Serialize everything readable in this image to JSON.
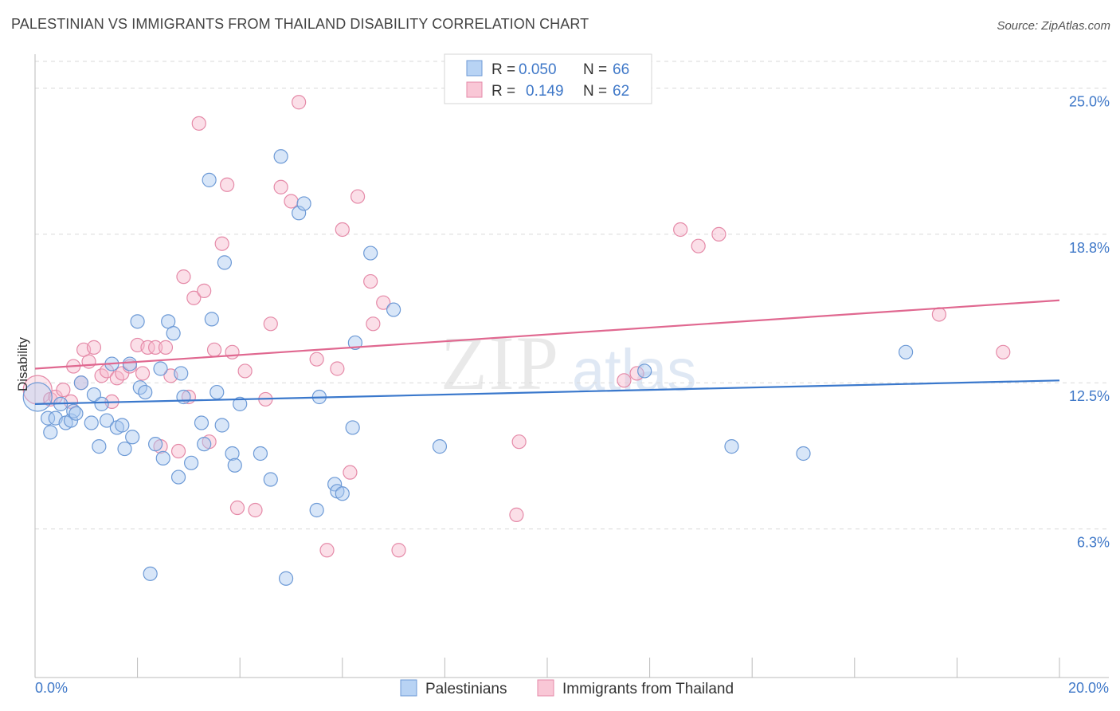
{
  "header": {
    "title": "PALESTINIAN VS IMMIGRANTS FROM THAILAND DISABILITY CORRELATION CHART",
    "source": "Source: ZipAtlas.com"
  },
  "watermark": {
    "part1": "ZIP",
    "part2": "atlas"
  },
  "legend": {
    "rows": [
      {
        "r_label": "R =",
        "r_value": "0.050",
        "n_label": "N =",
        "n_value": "66"
      },
      {
        "r_label": "R =",
        "r_value": "0.149",
        "n_label": "N =",
        "n_value": "62"
      }
    ]
  },
  "bottom_legend": {
    "series1": "Palestinians",
    "series2": "Immigrants from Thailand"
  },
  "colors": {
    "blue_fill": "#a9c8f0",
    "blue_stroke": "#6d9ad6",
    "blue_line": "#3a78cc",
    "pink_fill": "#f6b8cc",
    "pink_stroke": "#e58aa8",
    "pink_line": "#e06890",
    "axis_text": "#3f78c8",
    "grid": "#d9d9d9"
  },
  "chart_data": {
    "type": "scatter",
    "title": "PALESTINIAN VS IMMIGRANTS FROM THAILAND DISABILITY CORRELATION CHART",
    "xlabel": "",
    "ylabel": "Disability",
    "xlim": [
      0,
      20
    ],
    "ylim": [
      0,
      26.2
    ],
    "x_tick_labels": [
      "0.0%",
      "20.0%"
    ],
    "y_ticks": [
      6.3,
      12.5,
      18.8,
      25.0
    ],
    "y_tick_labels": [
      "6.3%",
      "12.5%",
      "18.8%",
      "25.0%"
    ],
    "series": [
      {
        "name": "Palestinians",
        "R": 0.05,
        "N": 66,
        "trend": {
          "x": [
            0,
            20
          ],
          "y": [
            11.6,
            12.6
          ]
        },
        "points": [
          {
            "x": 0.05,
            "y": 11.9,
            "big": true
          },
          {
            "x": 0.25,
            "y": 11.0
          },
          {
            "x": 0.3,
            "y": 10.4
          },
          {
            "x": 0.4,
            "y": 11.0
          },
          {
            "x": 0.5,
            "y": 11.6
          },
          {
            "x": 0.6,
            "y": 10.8
          },
          {
            "x": 0.7,
            "y": 10.9
          },
          {
            "x": 0.75,
            "y": 11.3
          },
          {
            "x": 0.8,
            "y": 11.2
          },
          {
            "x": 0.9,
            "y": 12.5
          },
          {
            "x": 1.1,
            "y": 10.8
          },
          {
            "x": 1.15,
            "y": 12.0
          },
          {
            "x": 1.25,
            "y": 9.8
          },
          {
            "x": 1.3,
            "y": 11.6
          },
          {
            "x": 1.4,
            "y": 10.9
          },
          {
            "x": 1.5,
            "y": 13.3
          },
          {
            "x": 1.6,
            "y": 10.6
          },
          {
            "x": 1.7,
            "y": 10.7
          },
          {
            "x": 1.75,
            "y": 9.7
          },
          {
            "x": 1.85,
            "y": 13.3
          },
          {
            "x": 1.9,
            "y": 10.2
          },
          {
            "x": 2.0,
            "y": 15.1
          },
          {
            "x": 2.05,
            "y": 12.3
          },
          {
            "x": 2.15,
            "y": 12.1
          },
          {
            "x": 2.25,
            "y": 4.4
          },
          {
            "x": 2.35,
            "y": 9.9
          },
          {
            "x": 2.45,
            "y": 13.1
          },
          {
            "x": 2.5,
            "y": 9.3
          },
          {
            "x": 2.6,
            "y": 15.1
          },
          {
            "x": 2.7,
            "y": 14.6
          },
          {
            "x": 2.8,
            "y": 8.5
          },
          {
            "x": 2.85,
            "y": 12.9
          },
          {
            "x": 2.9,
            "y": 11.9
          },
          {
            "x": 3.05,
            "y": 9.1
          },
          {
            "x": 3.25,
            "y": 10.8
          },
          {
            "x": 3.3,
            "y": 9.9
          },
          {
            "x": 3.4,
            "y": 21.1
          },
          {
            "x": 3.45,
            "y": 15.2
          },
          {
            "x": 3.55,
            "y": 12.1
          },
          {
            "x": 3.65,
            "y": 10.7
          },
          {
            "x": 3.7,
            "y": 17.6
          },
          {
            "x": 3.85,
            "y": 9.5
          },
          {
            "x": 3.9,
            "y": 9.0
          },
          {
            "x": 4.0,
            "y": 11.6
          },
          {
            "x": 4.4,
            "y": 9.5
          },
          {
            "x": 4.6,
            "y": 8.4
          },
          {
            "x": 4.8,
            "y": 22.1
          },
          {
            "x": 4.9,
            "y": 4.2
          },
          {
            "x": 5.15,
            "y": 19.7
          },
          {
            "x": 5.25,
            "y": 20.1
          },
          {
            "x": 5.5,
            "y": 7.1
          },
          {
            "x": 5.55,
            "y": 11.9
          },
          {
            "x": 5.85,
            "y": 8.2
          },
          {
            "x": 5.9,
            "y": 7.9
          },
          {
            "x": 6.0,
            "y": 7.8
          },
          {
            "x": 6.2,
            "y": 10.6
          },
          {
            "x": 6.25,
            "y": 14.2
          },
          {
            "x": 6.55,
            "y": 18.0
          },
          {
            "x": 7.0,
            "y": 15.6
          },
          {
            "x": 7.9,
            "y": 9.8
          },
          {
            "x": 11.9,
            "y": 13.0
          },
          {
            "x": 13.6,
            "y": 9.8
          },
          {
            "x": 15.0,
            "y": 9.5
          },
          {
            "x": 17.0,
            "y": 13.8
          }
        ]
      },
      {
        "name": "Immigrants from Thailand",
        "R": 0.149,
        "N": 62,
        "trend": {
          "x": [
            0,
            20
          ],
          "y": [
            13.1,
            16.0
          ]
        },
        "points": [
          {
            "x": 0.05,
            "y": 12.2,
            "big": true
          },
          {
            "x": 0.3,
            "y": 11.8
          },
          {
            "x": 0.4,
            "y": 11.9
          },
          {
            "x": 0.55,
            "y": 12.2
          },
          {
            "x": 0.7,
            "y": 11.7
          },
          {
            "x": 0.75,
            "y": 13.2
          },
          {
            "x": 0.9,
            "y": 12.5
          },
          {
            "x": 0.95,
            "y": 13.9
          },
          {
            "x": 1.05,
            "y": 13.4
          },
          {
            "x": 1.15,
            "y": 14.0
          },
          {
            "x": 1.3,
            "y": 12.8
          },
          {
            "x": 1.4,
            "y": 13.0
          },
          {
            "x": 1.5,
            "y": 11.7
          },
          {
            "x": 1.6,
            "y": 12.7
          },
          {
            "x": 1.7,
            "y": 12.9
          },
          {
            "x": 1.85,
            "y": 13.2
          },
          {
            "x": 2.0,
            "y": 14.1
          },
          {
            "x": 2.1,
            "y": 12.9
          },
          {
            "x": 2.2,
            "y": 14.0
          },
          {
            "x": 2.35,
            "y": 14.0
          },
          {
            "x": 2.45,
            "y": 9.8
          },
          {
            "x": 2.55,
            "y": 14.0
          },
          {
            "x": 2.65,
            "y": 12.8
          },
          {
            "x": 2.8,
            "y": 9.6
          },
          {
            "x": 2.9,
            "y": 17.0
          },
          {
            "x": 3.0,
            "y": 11.9
          },
          {
            "x": 3.1,
            "y": 16.1
          },
          {
            "x": 3.2,
            "y": 23.5
          },
          {
            "x": 3.3,
            "y": 16.4
          },
          {
            "x": 3.4,
            "y": 10.0
          },
          {
            "x": 3.5,
            "y": 13.9
          },
          {
            "x": 3.65,
            "y": 18.4
          },
          {
            "x": 3.75,
            "y": 20.9
          },
          {
            "x": 3.85,
            "y": 13.8
          },
          {
            "x": 3.95,
            "y": 7.2
          },
          {
            "x": 4.1,
            "y": 13.0
          },
          {
            "x": 4.3,
            "y": 7.1
          },
          {
            "x": 4.5,
            "y": 11.8
          },
          {
            "x": 4.6,
            "y": 15.0
          },
          {
            "x": 4.8,
            "y": 20.8
          },
          {
            "x": 5.0,
            "y": 20.2
          },
          {
            "x": 5.15,
            "y": 24.4
          },
          {
            "x": 5.5,
            "y": 13.5
          },
          {
            "x": 5.7,
            "y": 5.4
          },
          {
            "x": 5.9,
            "y": 13.1
          },
          {
            "x": 6.0,
            "y": 19.0
          },
          {
            "x": 6.15,
            "y": 8.7
          },
          {
            "x": 6.3,
            "y": 20.4
          },
          {
            "x": 6.55,
            "y": 16.8
          },
          {
            "x": 6.6,
            "y": 15.0
          },
          {
            "x": 6.8,
            "y": 15.9
          },
          {
            "x": 7.1,
            "y": 5.4
          },
          {
            "x": 9.4,
            "y": 6.9
          },
          {
            "x": 9.45,
            "y": 10.0
          },
          {
            "x": 11.5,
            "y": 12.6
          },
          {
            "x": 11.75,
            "y": 12.9
          },
          {
            "x": 12.6,
            "y": 19.0
          },
          {
            "x": 12.95,
            "y": 18.3
          },
          {
            "x": 13.35,
            "y": 18.8
          },
          {
            "x": 17.65,
            "y": 15.4
          },
          {
            "x": 18.9,
            "y": 13.8
          }
        ]
      }
    ]
  }
}
